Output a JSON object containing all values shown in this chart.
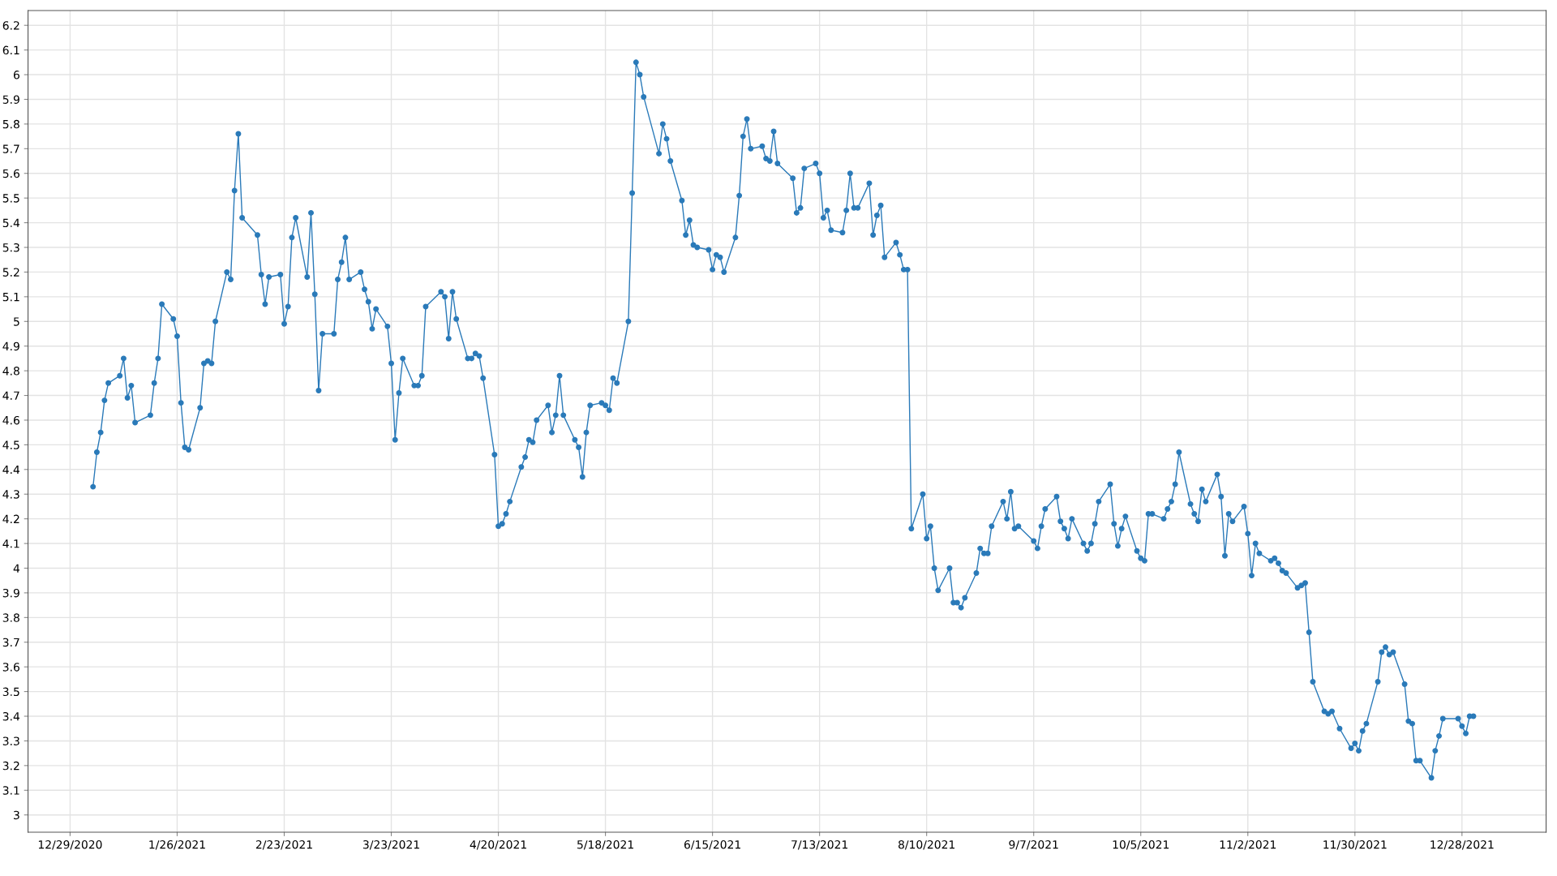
{
  "chart_data": {
    "type": "line",
    "color": "#2a7ab9",
    "marker": "circle",
    "line_style": "solid",
    "grid": true,
    "xlim": [
      "2020-12-18",
      "2022-01-19"
    ],
    "ylim": [
      2.93,
      6.26
    ],
    "xticks": [
      {
        "value": "2020-12-29",
        "label": "12/29/2020"
      },
      {
        "value": "2021-01-26",
        "label": "1/26/2021"
      },
      {
        "value": "2021-02-23",
        "label": "2/23/2021"
      },
      {
        "value": "2021-03-23",
        "label": "3/23/2021"
      },
      {
        "value": "2021-04-20",
        "label": "4/20/2021"
      },
      {
        "value": "2021-05-18",
        "label": "5/18/2021"
      },
      {
        "value": "2021-06-15",
        "label": "6/15/2021"
      },
      {
        "value": "2021-07-13",
        "label": "7/13/2021"
      },
      {
        "value": "2021-08-10",
        "label": "8/10/2021"
      },
      {
        "value": "2021-09-07",
        "label": "9/7/2021"
      },
      {
        "value": "2021-10-05",
        "label": "10/5/2021"
      },
      {
        "value": "2021-11-02",
        "label": "11/2/2021"
      },
      {
        "value": "2021-11-30",
        "label": "11/30/2021"
      },
      {
        "value": "2021-12-28",
        "label": "12/28/2021"
      }
    ],
    "yticks": [
      3,
      3.1,
      3.2,
      3.3,
      3.4,
      3.5,
      3.6,
      3.7,
      3.8,
      3.9,
      4,
      4.1,
      4.2,
      4.3,
      4.4,
      4.5,
      4.6,
      4.7,
      4.8,
      4.9,
      5,
      5.1,
      5.2,
      5.3,
      5.4,
      5.5,
      5.6,
      5.7,
      5.8,
      5.9,
      6,
      6.1,
      6.2
    ],
    "x": [
      "2021-01-04",
      "2021-01-05",
      "2021-01-06",
      "2021-01-07",
      "2021-01-08",
      "2021-01-11",
      "2021-01-12",
      "2021-01-13",
      "2021-01-14",
      "2021-01-15",
      "2021-01-19",
      "2021-01-20",
      "2021-01-21",
      "2021-01-22",
      "2021-01-25",
      "2021-01-26",
      "2021-01-27",
      "2021-01-28",
      "2021-01-29",
      "2021-02-01",
      "2021-02-02",
      "2021-02-03",
      "2021-02-04",
      "2021-02-05",
      "2021-02-08",
      "2021-02-09",
      "2021-02-10",
      "2021-02-11",
      "2021-02-12",
      "2021-02-16",
      "2021-02-17",
      "2021-02-18",
      "2021-02-19",
      "2021-02-22",
      "2021-02-23",
      "2021-02-24",
      "2021-02-25",
      "2021-02-26",
      "2021-03-01",
      "2021-03-02",
      "2021-03-03",
      "2021-03-04",
      "2021-03-05",
      "2021-03-08",
      "2021-03-09",
      "2021-03-10",
      "2021-03-11",
      "2021-03-12",
      "2021-03-15",
      "2021-03-16",
      "2021-03-17",
      "2021-03-18",
      "2021-03-19",
      "2021-03-22",
      "2021-03-23",
      "2021-03-24",
      "2021-03-25",
      "2021-03-26",
      "2021-03-29",
      "2021-03-30",
      "2021-03-31",
      "2021-04-01",
      "2021-04-05",
      "2021-04-06",
      "2021-04-07",
      "2021-04-08",
      "2021-04-09",
      "2021-04-12",
      "2021-04-13",
      "2021-04-14",
      "2021-04-15",
      "2021-04-16",
      "2021-04-19",
      "2021-04-20",
      "2021-04-21",
      "2021-04-22",
      "2021-04-23",
      "2021-04-26",
      "2021-04-27",
      "2021-04-28",
      "2021-04-29",
      "2021-04-30",
      "2021-05-03",
      "2021-05-04",
      "2021-05-05",
      "2021-05-06",
      "2021-05-07",
      "2021-05-10",
      "2021-05-11",
      "2021-05-12",
      "2021-05-13",
      "2021-05-14",
      "2021-05-17",
      "2021-05-18",
      "2021-05-19",
      "2021-05-20",
      "2021-05-21",
      "2021-05-24",
      "2021-05-25",
      "2021-05-26",
      "2021-05-27",
      "2021-05-28",
      "2021-06-01",
      "2021-06-02",
      "2021-06-03",
      "2021-06-04",
      "2021-06-07",
      "2021-06-08",
      "2021-06-09",
      "2021-06-10",
      "2021-06-11",
      "2021-06-14",
      "2021-06-15",
      "2021-06-16",
      "2021-06-17",
      "2021-06-18",
      "2021-06-21",
      "2021-06-22",
      "2021-06-23",
      "2021-06-24",
      "2021-06-25",
      "2021-06-28",
      "2021-06-29",
      "2021-06-30",
      "2021-07-01",
      "2021-07-02",
      "2021-07-06",
      "2021-07-07",
      "2021-07-08",
      "2021-07-09",
      "2021-07-12",
      "2021-07-13",
      "2021-07-14",
      "2021-07-15",
      "2021-07-16",
      "2021-07-19",
      "2021-07-20",
      "2021-07-21",
      "2021-07-22",
      "2021-07-23",
      "2021-07-26",
      "2021-07-27",
      "2021-07-28",
      "2021-07-29",
      "2021-07-30",
      "2021-08-02",
      "2021-08-03",
      "2021-08-04",
      "2021-08-05",
      "2021-08-06",
      "2021-08-09",
      "2021-08-10",
      "2021-08-11",
      "2021-08-12",
      "2021-08-13",
      "2021-08-16",
      "2021-08-17",
      "2021-08-18",
      "2021-08-19",
      "2021-08-20",
      "2021-08-23",
      "2021-08-24",
      "2021-08-25",
      "2021-08-26",
      "2021-08-27",
      "2021-08-30",
      "2021-08-31",
      "2021-09-01",
      "2021-09-02",
      "2021-09-03",
      "2021-09-07",
      "2021-09-08",
      "2021-09-09",
      "2021-09-10",
      "2021-09-13",
      "2021-09-14",
      "2021-09-15",
      "2021-09-16",
      "2021-09-17",
      "2021-09-20",
      "2021-09-21",
      "2021-09-22",
      "2021-09-23",
      "2021-09-24",
      "2021-09-27",
      "2021-09-28",
      "2021-09-29",
      "2021-09-30",
      "2021-10-01",
      "2021-10-04",
      "2021-10-05",
      "2021-10-06",
      "2021-10-07",
      "2021-10-08",
      "2021-10-11",
      "2021-10-12",
      "2021-10-13",
      "2021-10-14",
      "2021-10-15",
      "2021-10-18",
      "2021-10-19",
      "2021-10-20",
      "2021-10-21",
      "2021-10-22",
      "2021-10-25",
      "2021-10-26",
      "2021-10-27",
      "2021-10-28",
      "2021-10-29",
      "2021-11-01",
      "2021-11-02",
      "2021-11-03",
      "2021-11-04",
      "2021-11-05",
      "2021-11-08",
      "2021-11-09",
      "2021-11-10",
      "2021-11-11",
      "2021-11-12",
      "2021-11-15",
      "2021-11-16",
      "2021-11-17",
      "2021-11-18",
      "2021-11-19",
      "2021-11-22",
      "2021-11-23",
      "2021-11-24",
      "2021-11-26",
      "2021-11-29",
      "2021-11-30",
      "2021-12-01",
      "2021-12-02",
      "2021-12-03",
      "2021-12-06",
      "2021-12-07",
      "2021-12-08",
      "2021-12-09",
      "2021-12-10",
      "2021-12-13",
      "2021-12-14",
      "2021-12-15",
      "2021-12-16",
      "2021-12-17",
      "2021-12-20",
      "2021-12-21",
      "2021-12-22",
      "2021-12-23",
      "2021-12-27",
      "2021-12-28",
      "2021-12-29",
      "2021-12-30",
      "2021-12-31"
    ],
    "values": [
      4.33,
      4.47,
      4.55,
      4.68,
      4.75,
      4.78,
      4.85,
      4.69,
      4.74,
      4.59,
      4.62,
      4.75,
      4.85,
      5.07,
      5.01,
      4.94,
      4.67,
      4.49,
      4.48,
      4.65,
      4.83,
      4.84,
      4.83,
      5.0,
      5.2,
      5.17,
      5.53,
      5.76,
      5.42,
      5.35,
      5.19,
      5.07,
      5.18,
      5.19,
      4.99,
      5.06,
      5.34,
      5.42,
      5.18,
      5.44,
      5.11,
      4.72,
      4.95,
      4.95,
      5.17,
      5.24,
      5.34,
      5.17,
      5.2,
      5.13,
      5.08,
      4.97,
      5.05,
      4.98,
      4.83,
      4.52,
      4.71,
      4.85,
      4.74,
      4.74,
      4.78,
      5.06,
      5.12,
      5.1,
      4.93,
      5.12,
      5.01,
      4.85,
      4.85,
      4.87,
      4.86,
      4.77,
      4.46,
      4.17,
      4.18,
      4.22,
      4.27,
      4.41,
      4.45,
      4.52,
      4.51,
      4.6,
      4.66,
      4.55,
      4.62,
      4.78,
      4.62,
      4.52,
      4.49,
      4.37,
      4.55,
      4.66,
      4.67,
      4.66,
      4.64,
      4.77,
      4.75,
      5.0,
      5.52,
      6.05,
      6.0,
      5.91,
      5.68,
      5.8,
      5.74,
      5.65,
      5.49,
      5.35,
      5.41,
      5.31,
      5.3,
      5.29,
      5.21,
      5.27,
      5.26,
      5.2,
      5.34,
      5.51,
      5.75,
      5.82,
      5.7,
      5.71,
      5.66,
      5.65,
      5.77,
      5.64,
      5.58,
      5.44,
      5.46,
      5.62,
      5.64,
      5.6,
      5.42,
      5.45,
      5.37,
      5.36,
      5.45,
      5.6,
      5.46,
      5.46,
      5.56,
      5.35,
      5.43,
      5.47,
      5.26,
      5.32,
      5.27,
      5.21,
      5.21,
      4.16,
      4.3,
      4.12,
      4.17,
      4.0,
      3.91,
      4.0,
      3.86,
      3.86,
      3.84,
      3.88,
      3.98,
      4.08,
      4.06,
      4.06,
      4.17,
      4.27,
      4.2,
      4.31,
      4.16,
      4.17,
      4.11,
      4.08,
      4.17,
      4.24,
      4.29,
      4.19,
      4.16,
      4.12,
      4.2,
      4.1,
      4.07,
      4.1,
      4.18,
      4.27,
      4.34,
      4.18,
      4.09,
      4.16,
      4.21,
      4.07,
      4.04,
      4.03,
      4.22,
      4.22,
      4.2,
      4.24,
      4.27,
      4.34,
      4.47,
      4.26,
      4.22,
      4.19,
      4.32,
      4.27,
      4.38,
      4.29,
      4.05,
      4.22,
      4.19,
      4.25,
      4.14,
      3.97,
      4.1,
      4.06,
      4.03,
      4.04,
      4.02,
      3.99,
      3.98,
      3.92,
      3.93,
      3.94,
      3.74,
      3.54,
      3.42,
      3.41,
      3.42,
      3.35,
      3.27,
      3.29,
      3.26,
      3.34,
      3.37,
      3.54,
      3.66,
      3.68,
      3.65,
      3.66,
      3.53,
      3.38,
      3.37,
      3.22,
      3.22,
      3.15,
      3.26,
      3.32,
      3.39,
      3.39,
      3.36,
      3.33,
      3.4,
      3.4
    ]
  }
}
